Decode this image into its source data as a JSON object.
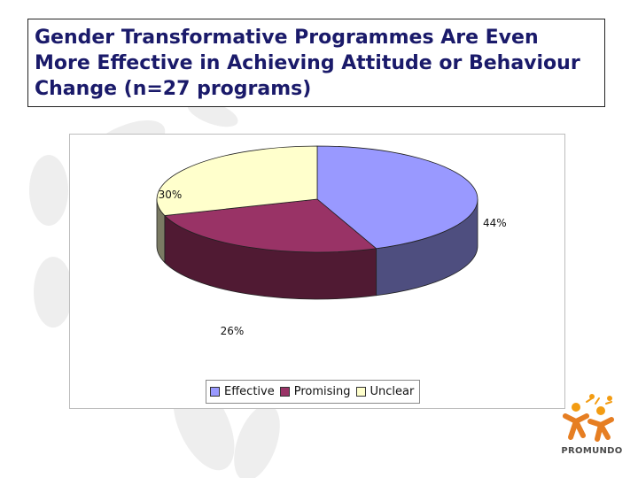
{
  "slide": {
    "title": "Gender Transformative Programmes Are Even More Effective in Achieving Attitude or Behaviour Change (n=27 programs)"
  },
  "chart_data": {
    "type": "pie",
    "style": "3d",
    "categories": [
      "Effective",
      "Promising",
      "Unclear"
    ],
    "values": [
      44,
      26,
      30
    ],
    "labels": [
      "44%",
      "26%",
      "30%"
    ],
    "colors": [
      "#9999ff",
      "#993366",
      "#ffffcc"
    ],
    "side_colors": [
      "#4e4e7f",
      "#501a33",
      "#7a7a63"
    ],
    "legend": "bottom"
  },
  "logo": {
    "text": "PROMUNDO",
    "colors": [
      "#f39c12",
      "#e67e22"
    ]
  }
}
